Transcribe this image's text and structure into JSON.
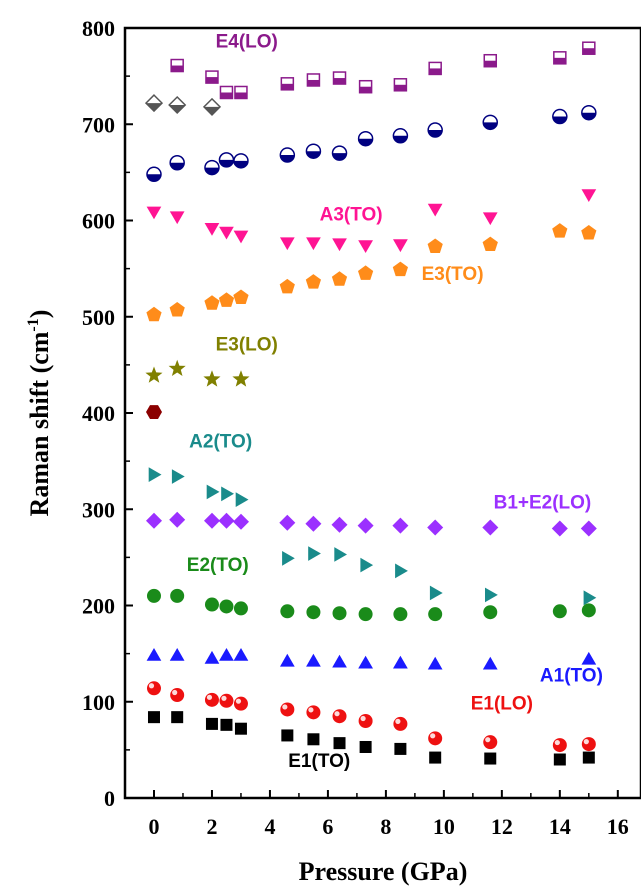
{
  "chart_data": {
    "type": "scatter",
    "xlabel": "Pressure (GPa)",
    "ylabel": "Raman shift (cm",
    "ylabel_sup": "-1",
    "ylabel_end": ")",
    "xlim": [
      -1,
      16.8
    ],
    "ylim": [
      0,
      800
    ],
    "xticks": [
      "0",
      "2",
      "4",
      "6",
      "8",
      "10",
      "12",
      "14",
      "16"
    ],
    "yticks": [
      "0",
      "100",
      "200",
      "300",
      "400",
      "500",
      "600",
      "700",
      "800"
    ],
    "grid": false,
    "series": [
      {
        "name": "E4(LO)",
        "marker": "square-half",
        "color": "#8B1A8B",
        "x": [
          0.8,
          2.0,
          2.5,
          3.0,
          4.6,
          5.5,
          6.4,
          7.3,
          8.5,
          9.7,
          11.6,
          14.0,
          15.0
        ],
        "y": [
          761,
          749,
          733,
          733,
          742,
          746,
          748,
          739,
          741,
          758,
          766,
          769,
          779
        ]
      },
      {
        "name": "",
        "marker": "diamond-half",
        "color": "#555555",
        "x": [
          0,
          0.8,
          2.0
        ],
        "y": [
          722,
          720,
          718
        ]
      },
      {
        "name": "",
        "marker": "circle-half",
        "color": "#000080",
        "x": [
          0,
          0.8,
          2.0,
          2.5,
          3.0,
          4.6,
          5.5,
          6.4,
          7.3,
          8.5,
          9.7,
          11.6,
          14.0,
          15.0
        ],
        "y": [
          648,
          660,
          655,
          663,
          662,
          668,
          672,
          670,
          685,
          688,
          694,
          702,
          708,
          712
        ]
      },
      {
        "name": "A3(TO)",
        "marker": "triangle-down",
        "color": "#FF1493",
        "x": [
          0,
          0.8,
          2.0,
          2.5,
          3.0,
          4.6,
          5.5,
          6.4,
          7.3,
          8.5,
          9.7,
          11.6,
          15.0
        ],
        "y": [
          609,
          604,
          592,
          588,
          584,
          577,
          577,
          576,
          574,
          575,
          612,
          603,
          627
        ]
      },
      {
        "name": "E3(TO)",
        "marker": "pentagon",
        "color": "#FF8C1A",
        "x": [
          0,
          0.8,
          2.0,
          2.5,
          3.0,
          4.6,
          5.5,
          6.4,
          7.3,
          8.5,
          9.7,
          11.6,
          14.0,
          15.0
        ],
        "y": [
          502,
          507,
          514,
          517,
          520,
          531,
          536,
          539,
          545,
          549,
          573,
          575,
          589,
          587
        ]
      },
      {
        "name": "E3(LO)",
        "marker": "star",
        "color": "#808000",
        "x": [
          0,
          0.8,
          2.0,
          3.0
        ],
        "y": [
          439,
          446,
          435,
          435
        ]
      },
      {
        "name": "",
        "marker": "hexagon",
        "color": "#8B0000",
        "x": [
          0
        ],
        "y": [
          401
        ]
      },
      {
        "name": "A2(TO)",
        "marker": "triangle-right",
        "color": "#1A8B8B",
        "x": [
          0,
          0.8,
          2.0,
          2.5,
          3.0,
          4.6,
          5.5,
          6.4,
          7.3,
          8.5,
          9.7,
          11.6,
          15.0
        ],
        "y": [
          336,
          334,
          318,
          316,
          310,
          249,
          254,
          253,
          242,
          236,
          213,
          211,
          208
        ]
      },
      {
        "name": "B1+E2(LO)",
        "marker": "diamond",
        "color": "#9B30FF",
        "x": [
          0,
          0.8,
          2.0,
          2.5,
          3.0,
          4.6,
          5.5,
          6.4,
          7.3,
          8.5,
          9.7,
          11.6,
          14.0,
          15.0
        ],
        "y": [
          288,
          289,
          288,
          288,
          287,
          286,
          285,
          284,
          283,
          283,
          281,
          281,
          280,
          280
        ]
      },
      {
        "name": "E2(TO)",
        "marker": "circle",
        "color": "#1A8B1A",
        "x": [
          0,
          0.8,
          2.0,
          2.5,
          3.0,
          4.6,
          5.5,
          6.4,
          7.3,
          8.5,
          9.7,
          11.6,
          14.0,
          15.0
        ],
        "y": [
          210,
          210,
          201,
          199,
          197,
          194,
          193,
          192,
          191,
          191,
          191,
          193,
          194,
          195
        ]
      },
      {
        "name": "A1(TO)",
        "marker": "triangle-up",
        "color": "#1A1AFF",
        "x": [
          0,
          0.8,
          2.0,
          2.5,
          3.0,
          4.6,
          5.5,
          6.4,
          7.3,
          8.5,
          9.7,
          11.6,
          15.0
        ],
        "y": [
          148,
          148,
          145,
          148,
          148,
          142,
          142,
          141,
          140,
          140,
          139,
          139,
          144
        ]
      },
      {
        "name": "E1(LO)",
        "marker": "circle-shaded",
        "color": "#EE1111",
        "x": [
          0,
          0.8,
          2.0,
          2.5,
          3.0,
          4.6,
          5.5,
          6.4,
          7.3,
          8.5,
          9.7,
          11.6,
          14.0,
          15.0
        ],
        "y": [
          114,
          107,
          102,
          101,
          98,
          92,
          89,
          85,
          80,
          77,
          62,
          58,
          55,
          56
        ]
      },
      {
        "name": "E1(TO)",
        "marker": "square",
        "color": "#000000",
        "x": [
          0,
          0.8,
          2.0,
          2.5,
          3.0,
          4.6,
          5.5,
          6.4,
          7.3,
          8.5,
          9.7,
          11.6,
          14.0,
          15.0
        ],
        "y": [
          84,
          84,
          77,
          76,
          72,
          65,
          61,
          57,
          53,
          51,
          42,
          41,
          40,
          42
        ]
      }
    ],
    "annotations": [
      {
        "text": "E4(LO)",
        "color": "#8B1A8B",
        "x": 3.2,
        "y": 780
      },
      {
        "text": "A3(TO)",
        "color": "#FF1493",
        "x": 6.8,
        "y": 600
      },
      {
        "text": "E3(TO)",
        "color": "#FF8C1A",
        "x": 10.3,
        "y": 538
      },
      {
        "text": "E3(LO)",
        "color": "#808000",
        "x": 3.2,
        "y": 465
      },
      {
        "text": "A2(TO)",
        "color": "#1A8B8B",
        "x": 2.3,
        "y": 364
      },
      {
        "text": "B1+E2(LO)",
        "color": "#9B30FF",
        "x": 13.4,
        "y": 301
      },
      {
        "text": "E2(TO)",
        "color": "#1A8B1A",
        "x": 2.2,
        "y": 236
      },
      {
        "text": "A1(TO)",
        "color": "#1A1AFF",
        "x": 14.4,
        "y": 121
      },
      {
        "text": "E1(LO)",
        "color": "#EE1111",
        "x": 12.0,
        "y": 92
      },
      {
        "text": "E1(TO)",
        "color": "#000000",
        "x": 5.7,
        "y": 32
      }
    ]
  }
}
